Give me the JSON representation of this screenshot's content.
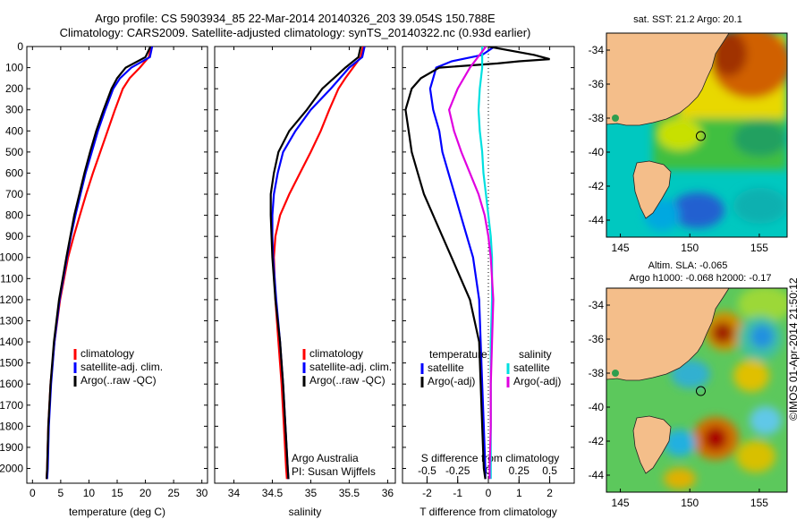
{
  "header": {
    "line1": "Argo profile: CS 5903934_85 22-Mar-2014 20140326_203 39.054S 150.788E",
    "line2": "Climatology: CARS2009. Satellite-adjusted climatology: synTS_20140322.nc (0.93d earlier)"
  },
  "colors": {
    "climatology": "#ff0000",
    "satellite": "#0000ff",
    "argo": "#000000",
    "salinity_satellite": "#00e0e0",
    "salinity_argo": "#e000e0"
  },
  "chart_data": [
    {
      "type": "line",
      "panel": "temperature",
      "xlabel": "temperature (deg C)",
      "ylabel": "",
      "xlim": [
        -1,
        31
      ],
      "ylim": [
        2070,
        0
      ],
      "y_reversed": true,
      "xticks": [
        0,
        5,
        10,
        15,
        20,
        25,
        30
      ],
      "yticks": [
        0,
        100,
        200,
        300,
        400,
        500,
        600,
        700,
        800,
        900,
        1000,
        1100,
        1200,
        1300,
        1400,
        1500,
        1600,
        1700,
        1800,
        1900,
        2000
      ],
      "legend": {
        "placement": "lower-right",
        "entries": [
          "climatology",
          "satellite-adj. clim.",
          "Argo(..raw -QC)"
        ]
      },
      "series": [
        {
          "name": "climatology",
          "color": "#ff0000",
          "depth": [
            0,
            50,
            100,
            150,
            200,
            300,
            400,
            500,
            600,
            700,
            800,
            900,
            1000,
            1200,
            1400,
            1600,
            1800,
            2000,
            2050
          ],
          "values": [
            21.0,
            20.6,
            19.0,
            17.2,
            16.0,
            14.6,
            13.3,
            12.0,
            10.7,
            9.5,
            8.4,
            7.3,
            6.3,
            4.9,
            3.9,
            3.2,
            2.8,
            2.6,
            2.5
          ]
        },
        {
          "name": "satellite-adj. clim.",
          "color": "#0000ff",
          "depth": [
            0,
            50,
            100,
            150,
            200,
            300,
            400,
            500,
            600,
            700,
            800,
            900,
            1000,
            1200,
            1400,
            1600,
            1800,
            2000,
            2050
          ],
          "values": [
            21.2,
            20.8,
            17.5,
            15.5,
            14.3,
            12.9,
            11.6,
            10.5,
            9.4,
            8.5,
            7.6,
            6.8,
            6.1,
            4.8,
            3.9,
            3.3,
            2.9,
            2.7,
            2.6
          ]
        },
        {
          "name": "Argo(..raw -QC)",
          "color": "#000000",
          "depth": [
            0,
            50,
            100,
            150,
            200,
            300,
            400,
            500,
            600,
            700,
            800,
            900,
            1000,
            1200,
            1400,
            1600,
            1800,
            2000,
            2050
          ],
          "values": [
            20.9,
            20.0,
            16.5,
            15.0,
            14.0,
            12.6,
            11.3,
            10.2,
            9.2,
            8.3,
            7.4,
            6.7,
            6.0,
            4.7,
            3.8,
            3.2,
            2.8,
            2.6,
            2.5
          ]
        }
      ]
    },
    {
      "type": "line",
      "panel": "salinity",
      "xlabel": "salinity",
      "ylabel": "",
      "xlim": [
        33.75,
        36.1
      ],
      "ylim": [
        2070,
        0
      ],
      "y_reversed": true,
      "xticks": [
        34,
        34.5,
        35,
        35.5,
        36
      ],
      "xticklabels": [
        "34",
        "34.5",
        "35",
        "35.5",
        "36"
      ],
      "legend": {
        "placement": "lower-right",
        "entries": [
          "climatology",
          "satellite-adj. clim.",
          "Argo(..raw -QC)"
        ]
      },
      "annotations": [
        "Argo Australia",
        "PI: Susan Wijffels"
      ],
      "series": [
        {
          "name": "climatology",
          "color": "#ff0000",
          "depth": [
            0,
            50,
            100,
            150,
            200,
            300,
            400,
            500,
            600,
            700,
            800,
            900,
            1000,
            1200,
            1400,
            1600,
            1800,
            2000,
            2050
          ],
          "values": [
            35.68,
            35.65,
            35.55,
            35.45,
            35.36,
            35.24,
            35.13,
            35.0,
            34.86,
            34.72,
            34.6,
            34.54,
            34.52,
            34.54,
            34.58,
            34.62,
            34.65,
            34.68,
            34.69
          ]
        },
        {
          "name": "satellite-adj. clim.",
          "color": "#0000ff",
          "depth": [
            0,
            50,
            100,
            150,
            200,
            300,
            400,
            500,
            600,
            700,
            800,
            900,
            1000,
            1200,
            1400,
            1600,
            1800,
            2000,
            2050
          ],
          "values": [
            35.7,
            35.67,
            35.5,
            35.38,
            35.26,
            35.0,
            34.8,
            34.64,
            34.57,
            34.52,
            34.5,
            34.5,
            34.51,
            34.55,
            34.6,
            34.64,
            34.67,
            34.7,
            34.71
          ]
        },
        {
          "name": "Argo(..raw -QC)",
          "color": "#000000",
          "depth": [
            0,
            50,
            100,
            150,
            200,
            300,
            400,
            500,
            600,
            700,
            800,
            900,
            1000,
            1200,
            1400,
            1600,
            1800,
            2000,
            2050
          ],
          "values": [
            35.65,
            35.62,
            35.45,
            35.3,
            35.15,
            34.95,
            34.72,
            34.58,
            34.52,
            34.48,
            34.48,
            34.49,
            34.5,
            34.54,
            34.6,
            34.64,
            34.67,
            34.7,
            34.71
          ]
        }
      ]
    },
    {
      "type": "line",
      "panel": "difference",
      "xlabel": "T difference from climatology",
      "top_xlabel": "S difference from climatology",
      "ylabel": "",
      "xlim": [
        -2.8,
        2.8
      ],
      "top_xlim": [
        -0.7,
        0.7
      ],
      "ylim": [
        2070,
        0
      ],
      "y_reversed": true,
      "xticks": [
        -2,
        -1,
        0,
        1,
        2
      ],
      "top_xticks": [
        -0.5,
        -0.25,
        0,
        0.25,
        0.5
      ],
      "top_xticklabels": [
        "-0.5",
        "-0.25",
        "0",
        "0.25",
        "0.5"
      ],
      "legend": {
        "placement": "lower-center",
        "headers": [
          "temperature",
          "salinity"
        ],
        "entries": [
          "satellite",
          "Argo(-adj)",
          "satellite",
          "Argo(-adj)"
        ]
      },
      "series": [
        {
          "name": "satellite",
          "variable": "temperature",
          "color": "#0000ff",
          "depth": [
            0,
            40,
            70,
            100,
            150,
            200,
            300,
            400,
            500,
            600,
            700,
            800,
            900,
            1000,
            1200,
            1400,
            1600,
            1800,
            2000,
            2050
          ],
          "values": [
            0.2,
            -0.2,
            -1.2,
            -1.7,
            -1.8,
            -1.9,
            -1.8,
            -1.6,
            -1.5,
            -1.3,
            -1.1,
            -0.9,
            -0.7,
            -0.5,
            -0.3,
            -0.25,
            -0.2,
            -0.15,
            -0.1,
            -0.1
          ]
        },
        {
          "name": "Argo(-adj)",
          "variable": "temperature",
          "color": "#000000",
          "depth": [
            0,
            40,
            60,
            70,
            80,
            100,
            150,
            200,
            300,
            400,
            500,
            600,
            700,
            800,
            900,
            1000,
            1200,
            1400,
            1600,
            1800,
            2000,
            2050
          ],
          "values": [
            0.0,
            1.5,
            2.0,
            1.0,
            0.3,
            -1.6,
            -2.2,
            -2.5,
            -2.7,
            -2.6,
            -2.5,
            -2.3,
            -2.1,
            -1.8,
            -1.5,
            -1.2,
            -0.6,
            -0.3,
            -0.25,
            -0.2,
            -0.15,
            -0.1
          ]
        },
        {
          "name": "satellite",
          "variable": "salinity",
          "color": "#00e0e0",
          "depth": [
            0,
            100,
            200,
            300,
            400,
            500,
            600,
            700,
            800,
            900,
            1000,
            1200,
            1400,
            1600,
            1800,
            2000,
            2050
          ],
          "values": [
            -0.05,
            -0.05,
            -0.07,
            -0.08,
            -0.07,
            -0.05,
            -0.04,
            -0.02,
            0.0,
            0.02,
            0.03,
            0.03,
            0.02,
            0.02,
            0.02,
            0.02,
            0.02
          ]
        },
        {
          "name": "Argo(-adj)",
          "variable": "salinity",
          "color": "#e000e0",
          "depth": [
            0,
            100,
            200,
            300,
            400,
            500,
            600,
            700,
            800,
            900,
            1000,
            1100,
            1200,
            1400,
            1600,
            1800,
            2000,
            2050
          ],
          "values": [
            -0.02,
            -0.15,
            -0.25,
            -0.32,
            -0.28,
            -0.22,
            -0.15,
            -0.08,
            -0.03,
            0.0,
            0.02,
            0.03,
            0.04,
            0.03,
            0.02,
            0.02,
            0.01,
            0.01
          ]
        }
      ]
    },
    {
      "type": "heatmap",
      "panel": "sst-map",
      "title": "sat. SST: 21.2  Argo: 20.1",
      "xlim": [
        144,
        157
      ],
      "ylim": [
        -45,
        -33
      ],
      "xticks": [
        145,
        150,
        155
      ],
      "yticks": [
        -34,
        -36,
        -38,
        -40,
        -42,
        -44
      ],
      "argo_position": {
        "lon": 150.788,
        "lat": -39.054
      }
    },
    {
      "type": "heatmap",
      "panel": "sla-map",
      "title": "Altim. SLA: -0.065",
      "subtitle": "Argo h1000: -0.068 h2000: -0.17",
      "xlim": [
        144,
        157
      ],
      "ylim": [
        -45,
        -33
      ],
      "xticks": [
        145,
        150,
        155
      ],
      "yticks": [
        -34,
        -36,
        -38,
        -40,
        -42,
        -44
      ],
      "argo_position": {
        "lon": 150.788,
        "lat": -39.054
      }
    }
  ],
  "footer": {
    "stamp": "©IMOS 01-Apr-2014 21:50:12"
  }
}
